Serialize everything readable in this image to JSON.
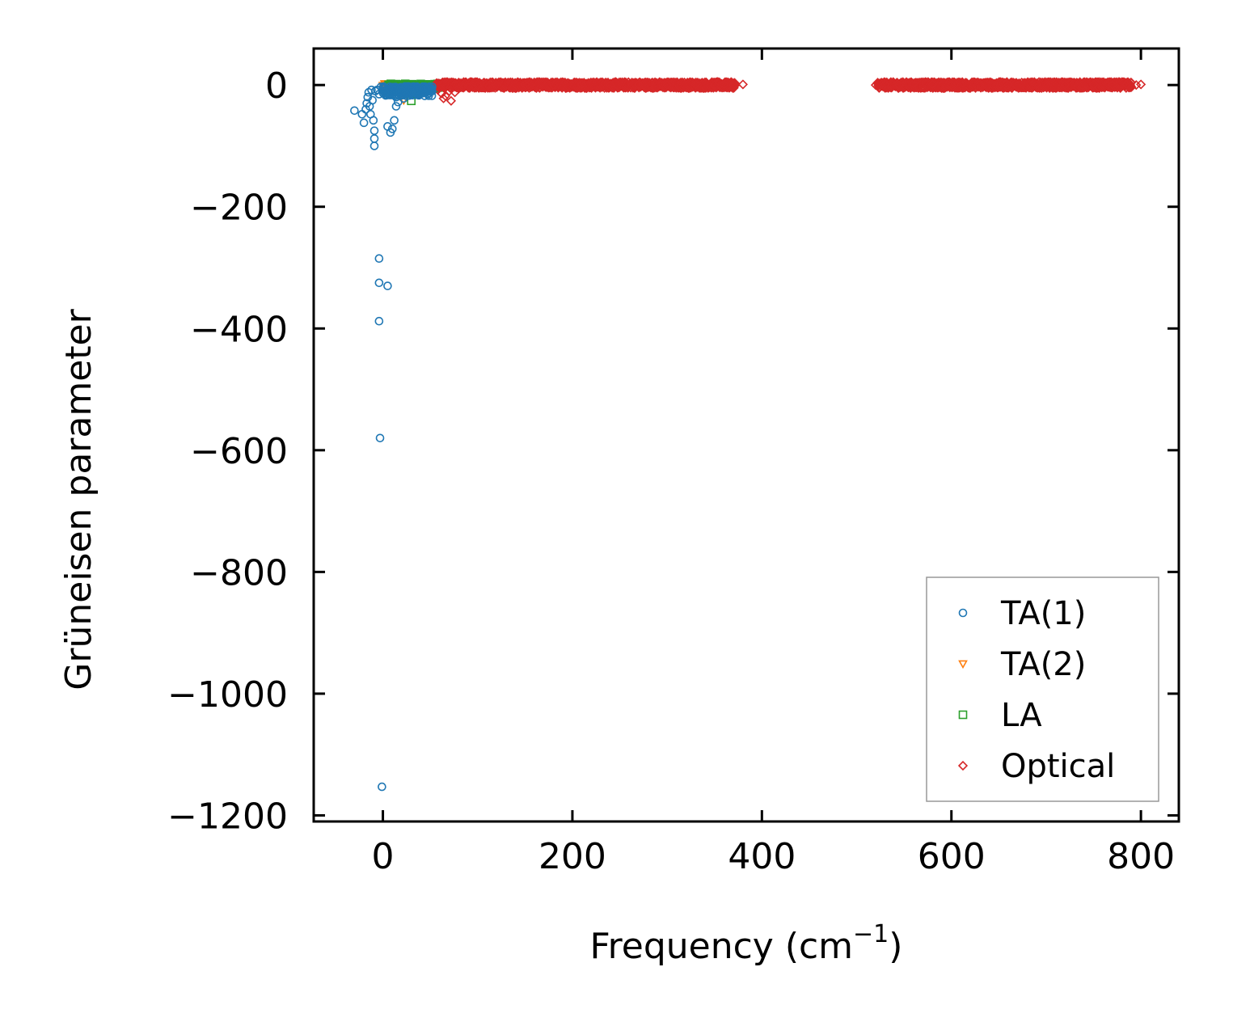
{
  "chart_data": {
    "type": "scatter",
    "xlabel": "Frequency (cm",
    "xlabel_sup": "−1",
    "xlabel_suffix": ")",
    "ylabel": "Grüneisen parameter",
    "xlim": [
      -73,
      840
    ],
    "ylim": [
      -1210,
      60
    ],
    "xticks": [
      0,
      200,
      400,
      600,
      800
    ],
    "xtick_labels": [
      "0",
      "200",
      "400",
      "600",
      "800"
    ],
    "yticks": [
      0,
      -200,
      -400,
      -600,
      -800,
      -1000,
      -1200
    ],
    "ytick_labels": [
      "0",
      "−200",
      "−400",
      "−600",
      "−800",
      "−1000",
      "−1200"
    ],
    "tick_direction": "in",
    "grid": false,
    "legend_position": "lower right",
    "series": [
      {
        "name": "TA(1)",
        "marker": "circle",
        "color": "#1f77b4",
        "points": [
          [
            -30,
            -42
          ],
          [
            -22,
            -48
          ],
          [
            -20,
            -62
          ],
          [
            -18,
            -40
          ],
          [
            -17,
            -30
          ],
          [
            -16,
            -20
          ],
          [
            -15,
            -12
          ],
          [
            -14,
            -35
          ],
          [
            -13,
            -48
          ],
          [
            -12,
            -8
          ],
          [
            -11,
            -25
          ],
          [
            -10,
            -58
          ],
          [
            -9,
            -75
          ],
          [
            -9,
            -88
          ],
          [
            -9,
            -100
          ],
          [
            -8,
            -10
          ],
          [
            -6,
            -8
          ],
          [
            -4,
            -15
          ],
          [
            -2,
            -3
          ],
          [
            0,
            -5
          ],
          [
            2,
            -12
          ],
          [
            5,
            -68
          ],
          [
            8,
            -78
          ],
          [
            10,
            -72
          ],
          [
            12,
            -58
          ],
          [
            14,
            -35
          ],
          [
            14,
            -20
          ],
          [
            16,
            -28
          ],
          [
            18,
            -15
          ],
          [
            20,
            -10
          ],
          [
            22,
            -22
          ],
          [
            25,
            -18
          ],
          [
            28,
            -14
          ],
          [
            30,
            -10
          ],
          [
            33,
            -12
          ],
          [
            36,
            -8
          ],
          [
            40,
            -6
          ],
          [
            44,
            -5
          ],
          [
            48,
            -4
          ],
          [
            52,
            -3
          ],
          [
            -4,
            -285
          ],
          [
            -4,
            -325
          ],
          [
            5,
            -330
          ],
          [
            -4,
            -388
          ],
          [
            -3,
            -580
          ],
          [
            -1,
            -1153
          ]
        ]
      },
      {
        "name": "TA(2)",
        "marker": "triangle_down",
        "color": "#ff7f0e",
        "points": [
          [
            2,
            2
          ],
          [
            6,
            -2
          ],
          [
            10,
            -6
          ],
          [
            14,
            -10
          ],
          [
            18,
            -18
          ],
          [
            22,
            -25
          ],
          [
            24,
            -10
          ],
          [
            28,
            -4
          ],
          [
            32,
            -2
          ],
          [
            36,
            0
          ],
          [
            40,
            1
          ],
          [
            45,
            0
          ],
          [
            50,
            2
          ],
          [
            55,
            1
          ],
          [
            60,
            -1
          ]
        ]
      },
      {
        "name": "LA",
        "marker": "square",
        "color": "#2ca02c",
        "points": [
          [
            10,
            -2
          ],
          [
            14,
            -5
          ],
          [
            18,
            0
          ],
          [
            22,
            -8
          ],
          [
            26,
            -3
          ],
          [
            30,
            -26
          ],
          [
            34,
            -6
          ],
          [
            38,
            -4
          ],
          [
            42,
            -2
          ],
          [
            46,
            -1
          ],
          [
            50,
            0
          ],
          [
            55,
            1
          ],
          [
            60,
            0
          ]
        ]
      },
      {
        "name": "Optical",
        "marker": "diamond",
        "color": "#d62728",
        "points": [
          [
            58,
            -8
          ],
          [
            62,
            -14
          ],
          [
            64,
            -22
          ],
          [
            66,
            -18
          ],
          [
            70,
            -10
          ],
          [
            72,
            -26
          ],
          [
            76,
            -12
          ],
          [
            80,
            -6
          ],
          [
            85,
            -4
          ],
          [
            90,
            -3
          ],
          [
            95,
            -2
          ],
          [
            100,
            -1
          ],
          [
            120,
            0
          ],
          [
            150,
            1
          ],
          [
            180,
            0
          ],
          [
            210,
            1
          ],
          [
            240,
            0
          ],
          [
            270,
            1
          ],
          [
            300,
            0
          ],
          [
            330,
            1
          ],
          [
            350,
            0
          ],
          [
            360,
            1
          ],
          [
            370,
            0
          ],
          [
            380,
            1
          ],
          [
            520,
            0
          ],
          [
            530,
            1
          ],
          [
            545,
            0
          ],
          [
            560,
            2
          ],
          [
            580,
            1
          ],
          [
            600,
            0
          ],
          [
            630,
            1
          ],
          [
            660,
            0
          ],
          [
            690,
            1
          ],
          [
            720,
            0
          ],
          [
            750,
            1
          ],
          [
            770,
            0
          ],
          [
            785,
            1
          ],
          [
            795,
            0
          ],
          [
            800,
            1
          ]
        ]
      }
    ],
    "dense_bands": [
      {
        "series": "Optical",
        "x_range": [
          56,
          372
        ],
        "y": 0,
        "spread": 10,
        "count": 1200
      },
      {
        "series": "Optical",
        "x_range": [
          522,
          790
        ],
        "y": 0,
        "spread": 10,
        "count": 1100
      },
      {
        "series": "TA(1)",
        "x_range": [
          0,
          52
        ],
        "y": -10,
        "spread": 16,
        "count": 160
      },
      {
        "series": "TA(2)",
        "x_range": [
          0,
          56
        ],
        "y": -2,
        "spread": 8,
        "count": 90
      },
      {
        "series": "LA",
        "x_range": [
          6,
          60
        ],
        "y": -2,
        "spread": 8,
        "count": 90
      }
    ]
  }
}
